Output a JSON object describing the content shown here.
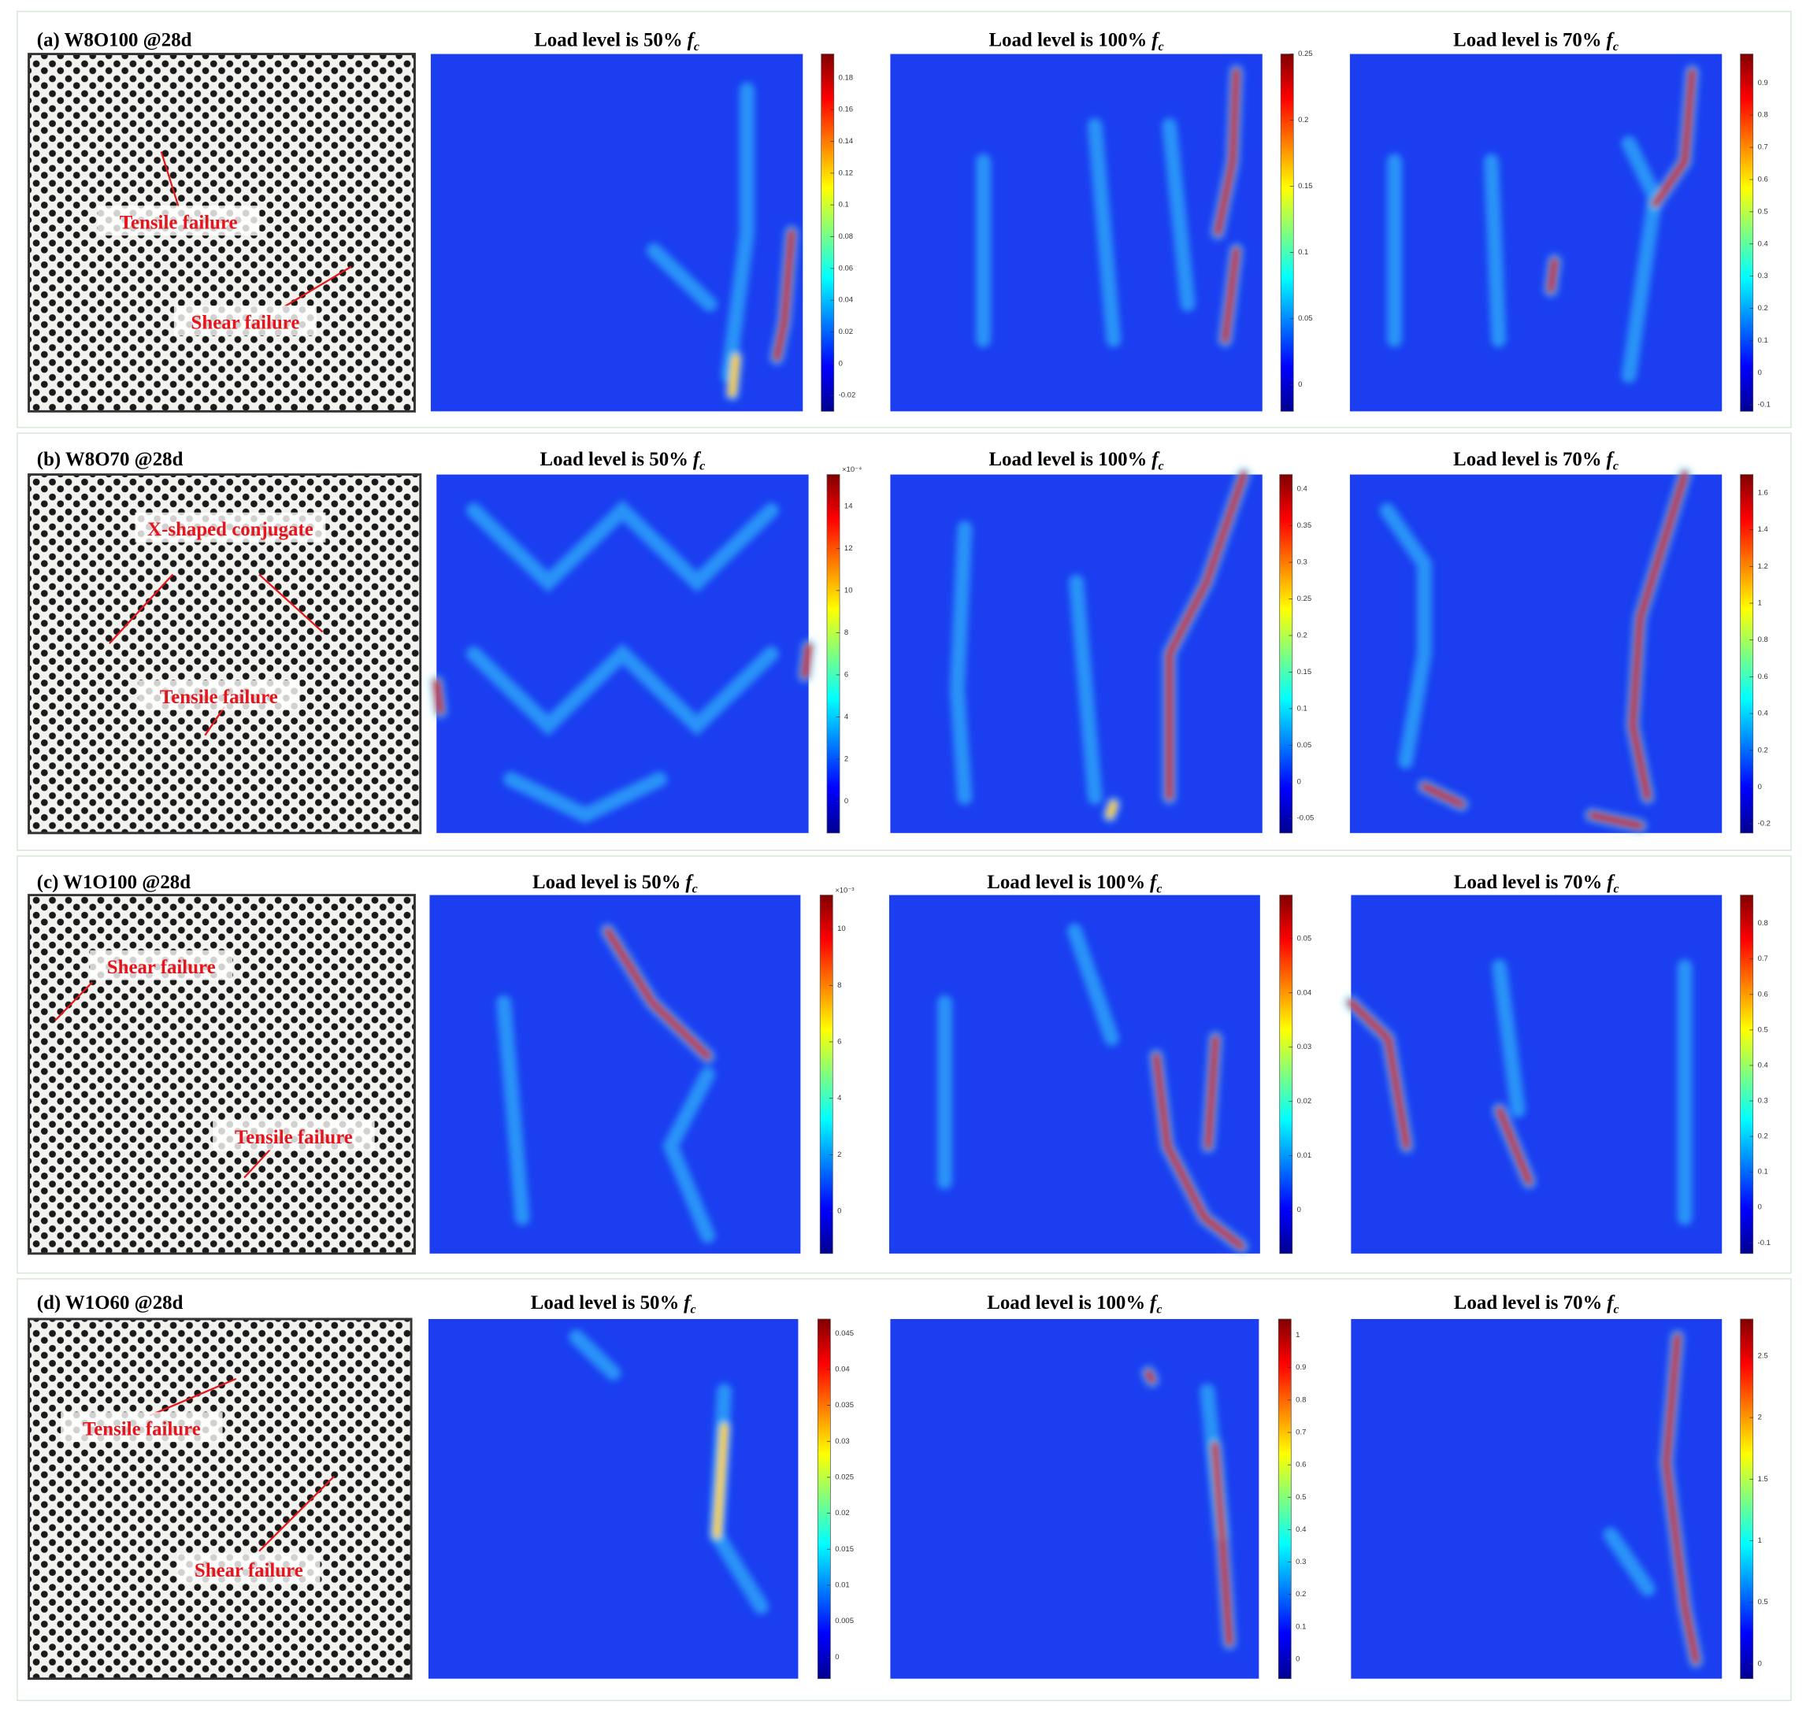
{
  "panels": [
    {
      "label": "(a) W8O100 @28d",
      "annotations": [
        "Tensile failure",
        "Shear failure"
      ],
      "maps": [
        {
          "title": "Load level is 50%",
          "symbol": "f",
          "subscript": "c",
          "clim": [
            -0.03,
            0.195
          ],
          "ticks": [
            -0.02,
            0,
            0.02,
            0.04,
            0.06,
            0.08,
            0.1,
            0.12,
            0.14,
            0.16,
            0.18
          ]
        },
        {
          "title": "Load level is 100%",
          "symbol": "f",
          "subscript": "c",
          "clim": [
            -0.02,
            0.25
          ],
          "ticks": [
            0,
            0.05,
            0.1,
            0.15,
            0.2,
            0.25
          ]
        },
        {
          "title": "Load level is 70%",
          "symbol": "f",
          "subscript": "c",
          "clim": [
            -0.12,
            0.99
          ],
          "ticks": [
            -0.1,
            0,
            0.1,
            0.2,
            0.3,
            0.4,
            0.5,
            0.6,
            0.7,
            0.8,
            0.9
          ]
        }
      ]
    },
    {
      "label": "(b) W8O70 @28d",
      "annotations": [
        "X-shaped conjugate",
        "Tensile failure"
      ],
      "maps": [
        {
          "title": "Load level is 50%",
          "symbol": "f",
          "subscript": "c",
          "exponent": "×10⁻⁴",
          "clim": [
            -1.5,
            15.5
          ],
          "ticks": [
            0,
            2,
            4,
            6,
            8,
            10,
            12,
            14
          ]
        },
        {
          "title": "Load level is 100%",
          "symbol": "f",
          "subscript": "c",
          "clim": [
            -0.07,
            0.42
          ],
          "ticks": [
            -0.05,
            0,
            0.05,
            0.1,
            0.15,
            0.2,
            0.25,
            0.3,
            0.35,
            0.4
          ]
        },
        {
          "title": "Load level is 70%",
          "symbol": "f",
          "subscript": "c",
          "clim": [
            -0.25,
            1.7
          ],
          "ticks": [
            -0.2,
            0,
            0.2,
            0.4,
            0.6,
            0.8,
            1,
            1.2,
            1.4,
            1.6
          ]
        }
      ]
    },
    {
      "label": "(c) W1O100 @28d",
      "annotations": [
        "Shear failure",
        "Tensile failure"
      ],
      "maps": [
        {
          "title": "Load level is 50%",
          "symbol": "f",
          "subscript": "c",
          "exponent": "×10⁻³",
          "clim": [
            -1.5,
            11.2
          ],
          "ticks": [
            0,
            2,
            4,
            6,
            8,
            10
          ]
        },
        {
          "title": "Load level is 100%",
          "symbol": "f",
          "subscript": "c",
          "clim": [
            -0.008,
            0.058
          ],
          "ticks": [
            0,
            0.01,
            0.02,
            0.03,
            0.04,
            0.05
          ]
        },
        {
          "title": "Load level is 70%",
          "symbol": "f",
          "subscript": "c",
          "clim": [
            -0.13,
            0.88
          ],
          "ticks": [
            -0.1,
            0,
            0.1,
            0.2,
            0.3,
            0.4,
            0.5,
            0.6,
            0.7,
            0.8
          ]
        }
      ]
    },
    {
      "label": "(d) W1O60 @28d",
      "annotations": [
        "Tensile failure",
        "Shear failure"
      ],
      "maps": [
        {
          "title": "Load level is 50%",
          "symbol": "f",
          "subscript": "c",
          "clim": [
            -0.003,
            0.047
          ],
          "ticks": [
            0,
            0.005,
            0.01,
            0.015,
            0.02,
            0.025,
            0.03,
            0.035,
            0.04,
            0.045
          ]
        },
        {
          "title": "Load level is 100%",
          "symbol": "f",
          "subscript": "c",
          "clim": [
            -0.06,
            1.05
          ],
          "ticks": [
            0,
            0.1,
            0.2,
            0.3,
            0.4,
            0.5,
            0.6,
            0.7,
            0.8,
            0.9,
            1
          ]
        },
        {
          "title": "Load level is 70%",
          "symbol": "f",
          "subscript": "c",
          "clim": [
            -0.12,
            2.8
          ],
          "ticks": [
            0,
            0.5,
            1,
            1.5,
            2,
            2.5
          ]
        }
      ]
    }
  ]
}
